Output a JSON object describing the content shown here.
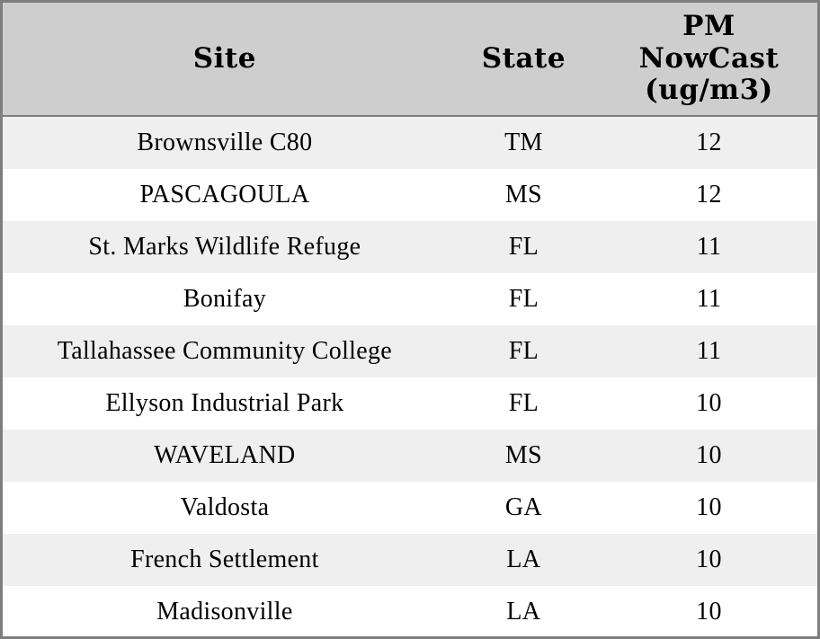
{
  "chart_data": {
    "type": "table",
    "title": "",
    "columns": [
      "Site",
      "State",
      "PM NowCast (ug/m3)"
    ],
    "rows": [
      [
        "Brownsville C80",
        "TM",
        12
      ],
      [
        "PASCAGOULA",
        "MS",
        12
      ],
      [
        "St. Marks Wildlife Refuge",
        "FL",
        11
      ],
      [
        "Bonifay",
        "FL",
        11
      ],
      [
        "Tallahassee Community College",
        "FL",
        11
      ],
      [
        "Ellyson Industrial Park",
        "FL",
        10
      ],
      [
        "WAVELAND",
        "MS",
        10
      ],
      [
        "Valdosta",
        "GA",
        10
      ],
      [
        "French Settlement",
        "LA",
        10
      ],
      [
        "Madisonville",
        "LA",
        10
      ]
    ],
    "layout": {
      "zebra_striping": true,
      "header_align": "center",
      "cell_align": "center"
    }
  },
  "colors": {
    "header_bg": "#cecece",
    "stripe_bg": "#efefef",
    "row_bg": "#ffffff",
    "border": "#7e7e7e",
    "text": "#000000"
  }
}
